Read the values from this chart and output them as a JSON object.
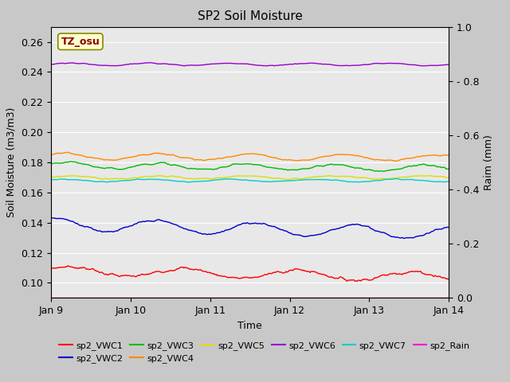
{
  "title": "SP2 Soil Moisture",
  "xlabel": "Time",
  "ylabel_left": "Soil Moisture (m3/m3)",
  "ylabel_right": "Raim (mm)",
  "ylim_left": [
    0.09,
    0.27
  ],
  "ylim_right": [
    0.0,
    1.0
  ],
  "yticks_left": [
    0.1,
    0.12,
    0.14,
    0.16,
    0.18,
    0.2,
    0.22,
    0.24,
    0.26
  ],
  "yticks_right": [
    0.0,
    0.2,
    0.4,
    0.6,
    0.8,
    1.0
  ],
  "xtick_positions": [
    0,
    1,
    2,
    3,
    4,
    5
  ],
  "xtick_labels": [
    "Jan 9",
    "Jan 10",
    "Jan 11",
    "Jan 12",
    "Jan 13",
    "Jan 14"
  ],
  "figure_bg": "#c8c8c8",
  "plot_bg": "#e8e8e8",
  "grid_color": "#ffffff",
  "series_colors": {
    "sp2_VWC1": "#ff0000",
    "sp2_VWC2": "#0000cc",
    "sp2_VWC3": "#00bb00",
    "sp2_VWC4": "#ff8800",
    "sp2_VWC5": "#dddd00",
    "sp2_VWC6": "#9900cc",
    "sp2_VWC7": "#00cccc",
    "sp2_Rain": "#ff00cc"
  },
  "series_means": {
    "sp2_VWC1": 0.108,
    "sp2_VWC2": 0.139,
    "sp2_VWC3": 0.178,
    "sp2_VWC4": 0.184,
    "sp2_VWC5": 0.17,
    "sp2_VWC6": 0.245,
    "sp2_VWC7": 0.168,
    "sp2_Rain": 0.0
  },
  "legend_row1": [
    {
      "label": "sp2_VWC1",
      "color": "#ff0000"
    },
    {
      "label": "sp2_VWC2",
      "color": "#0000cc"
    },
    {
      "label": "sp2_VWC3",
      "color": "#00bb00"
    },
    {
      "label": "sp2_VWC4",
      "color": "#ff8800"
    },
    {
      "label": "sp2_VWC5",
      "color": "#dddd00"
    },
    {
      "label": "sp2_VWC6",
      "color": "#9900cc"
    }
  ],
  "legend_row2": [
    {
      "label": "sp2_VWC7",
      "color": "#00cccc"
    },
    {
      "label": "sp2_Rain",
      "color": "#ff00cc"
    }
  ],
  "annotation_text": "TZ_osu",
  "annotation_color": "#880000",
  "annotation_bg": "#ffffcc",
  "annotation_border": "#888800",
  "linewidth": 1.0,
  "title_fontsize": 11,
  "tick_fontsize": 9,
  "label_fontsize": 9,
  "legend_fontsize": 8
}
